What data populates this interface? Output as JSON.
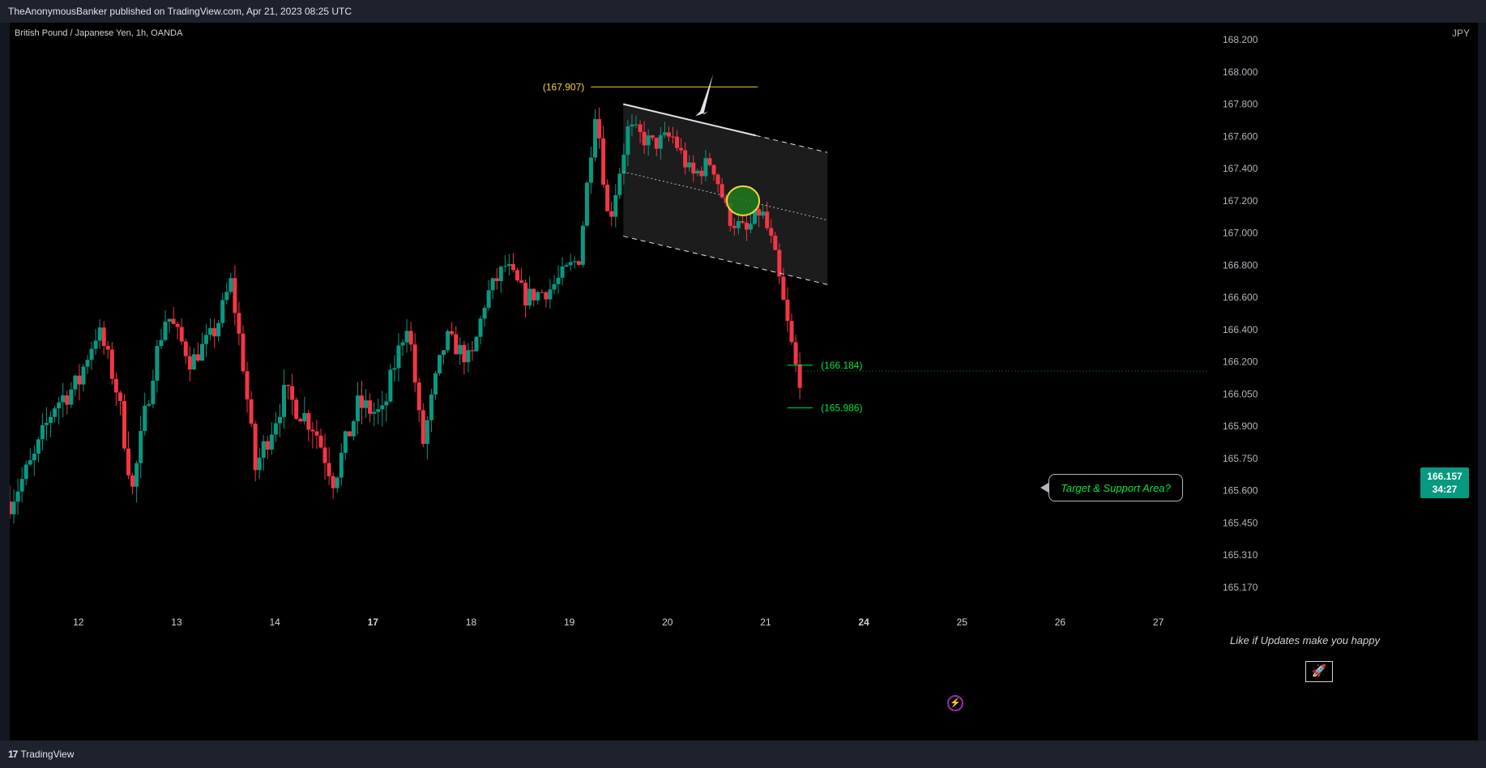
{
  "header": {
    "publisher_line": "TheAnonymousBanker published on TradingView.com, Apr 21, 2023 08:25 UTC"
  },
  "footer": {
    "logo_mark": "17",
    "logo_text": "TradingView"
  },
  "symbol_line": "British Pound / Japanese Yen, 1h, OANDA",
  "currency": "JPY",
  "last_price": {
    "price": "166.157",
    "countdown": "34:27",
    "value": 166.157
  },
  "annotations": {
    "high_label": "(167.907)",
    "upper_target_label": "(166.184)",
    "lower_target_label": "(165.986)",
    "callout": "Target & Support Area?",
    "like_text": "Like if Updates make you happy",
    "rocket_icon": "🚀",
    "bolt_icon": "⚡"
  },
  "colors": {
    "up": "#089981",
    "down": "#f23645",
    "high_line": "#f7d23e",
    "target": "#00e640",
    "channel": "#e0e3eb",
    "background": "#000000"
  },
  "chart_data": {
    "type": "candlestick",
    "title": "",
    "xlabel": "",
    "ylabel": "",
    "x_tick_labels": [
      {
        "label": "12",
        "day": 12
      },
      {
        "label": "13",
        "day": 13
      },
      {
        "label": "14",
        "day": 14
      },
      {
        "label": "17",
        "day": 15,
        "bold": true
      },
      {
        "label": "18",
        "day": 16
      },
      {
        "label": "19",
        "day": 17
      },
      {
        "label": "20",
        "day": 18
      },
      {
        "label": "21",
        "day": 19
      },
      {
        "label": "24",
        "day": 20,
        "bold": true
      },
      {
        "label": "25",
        "day": 21
      },
      {
        "label": "26",
        "day": 22
      },
      {
        "label": "27",
        "day": 23
      }
    ],
    "y_tick_labels": [
      "168.200",
      "168.000",
      "167.800",
      "167.600",
      "167.400",
      "167.200",
      "167.000",
      "166.800",
      "166.600",
      "166.400",
      "166.200",
      "166.050",
      "165.900",
      "165.750",
      "165.600",
      "165.450",
      "165.310",
      "165.170"
    ],
    "y_tick_values": [
      168.2,
      168.0,
      167.8,
      167.6,
      167.4,
      167.2,
      167.0,
      166.8,
      166.6,
      166.4,
      166.2,
      166.05,
      165.9,
      165.75,
      165.6,
      165.45,
      165.31,
      165.17
    ],
    "x_range": [
      11.3,
      23.35
    ],
    "price_anchors": [
      {
        "t": 11.3,
        "p": 165.55
      },
      {
        "t": 11.55,
        "p": 165.75
      },
      {
        "t": 11.75,
        "p": 166.0
      },
      {
        "t": 12.0,
        "p": 166.1
      },
      {
        "t": 12.2,
        "p": 166.4
      },
      {
        "t": 12.4,
        "p": 166.05
      },
      {
        "t": 12.55,
        "p": 165.6
      },
      {
        "t": 12.75,
        "p": 166.15
      },
      {
        "t": 12.9,
        "p": 166.5
      },
      {
        "t": 13.15,
        "p": 166.2
      },
      {
        "t": 13.4,
        "p": 166.4
      },
      {
        "t": 13.55,
        "p": 166.7
      },
      {
        "t": 13.8,
        "p": 165.7
      },
      {
        "t": 14.1,
        "p": 166.05
      },
      {
        "t": 14.4,
        "p": 165.9
      },
      {
        "t": 14.6,
        "p": 165.65
      },
      {
        "t": 14.85,
        "p": 166.0
      },
      {
        "t": 15.1,
        "p": 165.95
      },
      {
        "t": 15.35,
        "p": 166.45
      },
      {
        "t": 15.5,
        "p": 165.8
      },
      {
        "t": 15.75,
        "p": 166.35
      },
      {
        "t": 16.0,
        "p": 166.2
      },
      {
        "t": 16.15,
        "p": 166.6
      },
      {
        "t": 16.35,
        "p": 166.8
      },
      {
        "t": 16.55,
        "p": 166.6
      },
      {
        "t": 16.8,
        "p": 166.65
      },
      {
        "t": 17.1,
        "p": 166.85
      },
      {
        "t": 17.27,
        "p": 167.8
      },
      {
        "t": 17.4,
        "p": 167.05
      },
      {
        "t": 17.6,
        "p": 167.65
      },
      {
        "t": 17.85,
        "p": 167.55
      },
      {
        "t": 18.05,
        "p": 167.6
      },
      {
        "t": 18.25,
        "p": 167.35
      },
      {
        "t": 18.45,
        "p": 167.45
      },
      {
        "t": 18.62,
        "p": 167.1
      },
      {
        "t": 18.8,
        "p": 167.0
      },
      {
        "t": 18.95,
        "p": 167.15
      },
      {
        "t": 19.08,
        "p": 166.9
      },
      {
        "t": 19.2,
        "p": 166.5
      },
      {
        "t": 19.33,
        "p": 166.1
      },
      {
        "t": 19.36,
        "p": 166.16
      }
    ],
    "high_line": {
      "value": 167.907,
      "t_start": 17.22,
      "t_end": 18.92
    },
    "channel": {
      "upper": {
        "t1": 17.55,
        "p1": 167.8,
        "t2": 19.63,
        "p2": 167.5
      },
      "mid_offset": -0.42,
      "lower_offset": -0.82,
      "solid_until": 18.9
    },
    "circle": {
      "t": 18.77,
      "p": 167.2
    },
    "targets": [
      166.184,
      165.986
    ],
    "target_t_range": [
      19.22,
      19.48
    ]
  }
}
